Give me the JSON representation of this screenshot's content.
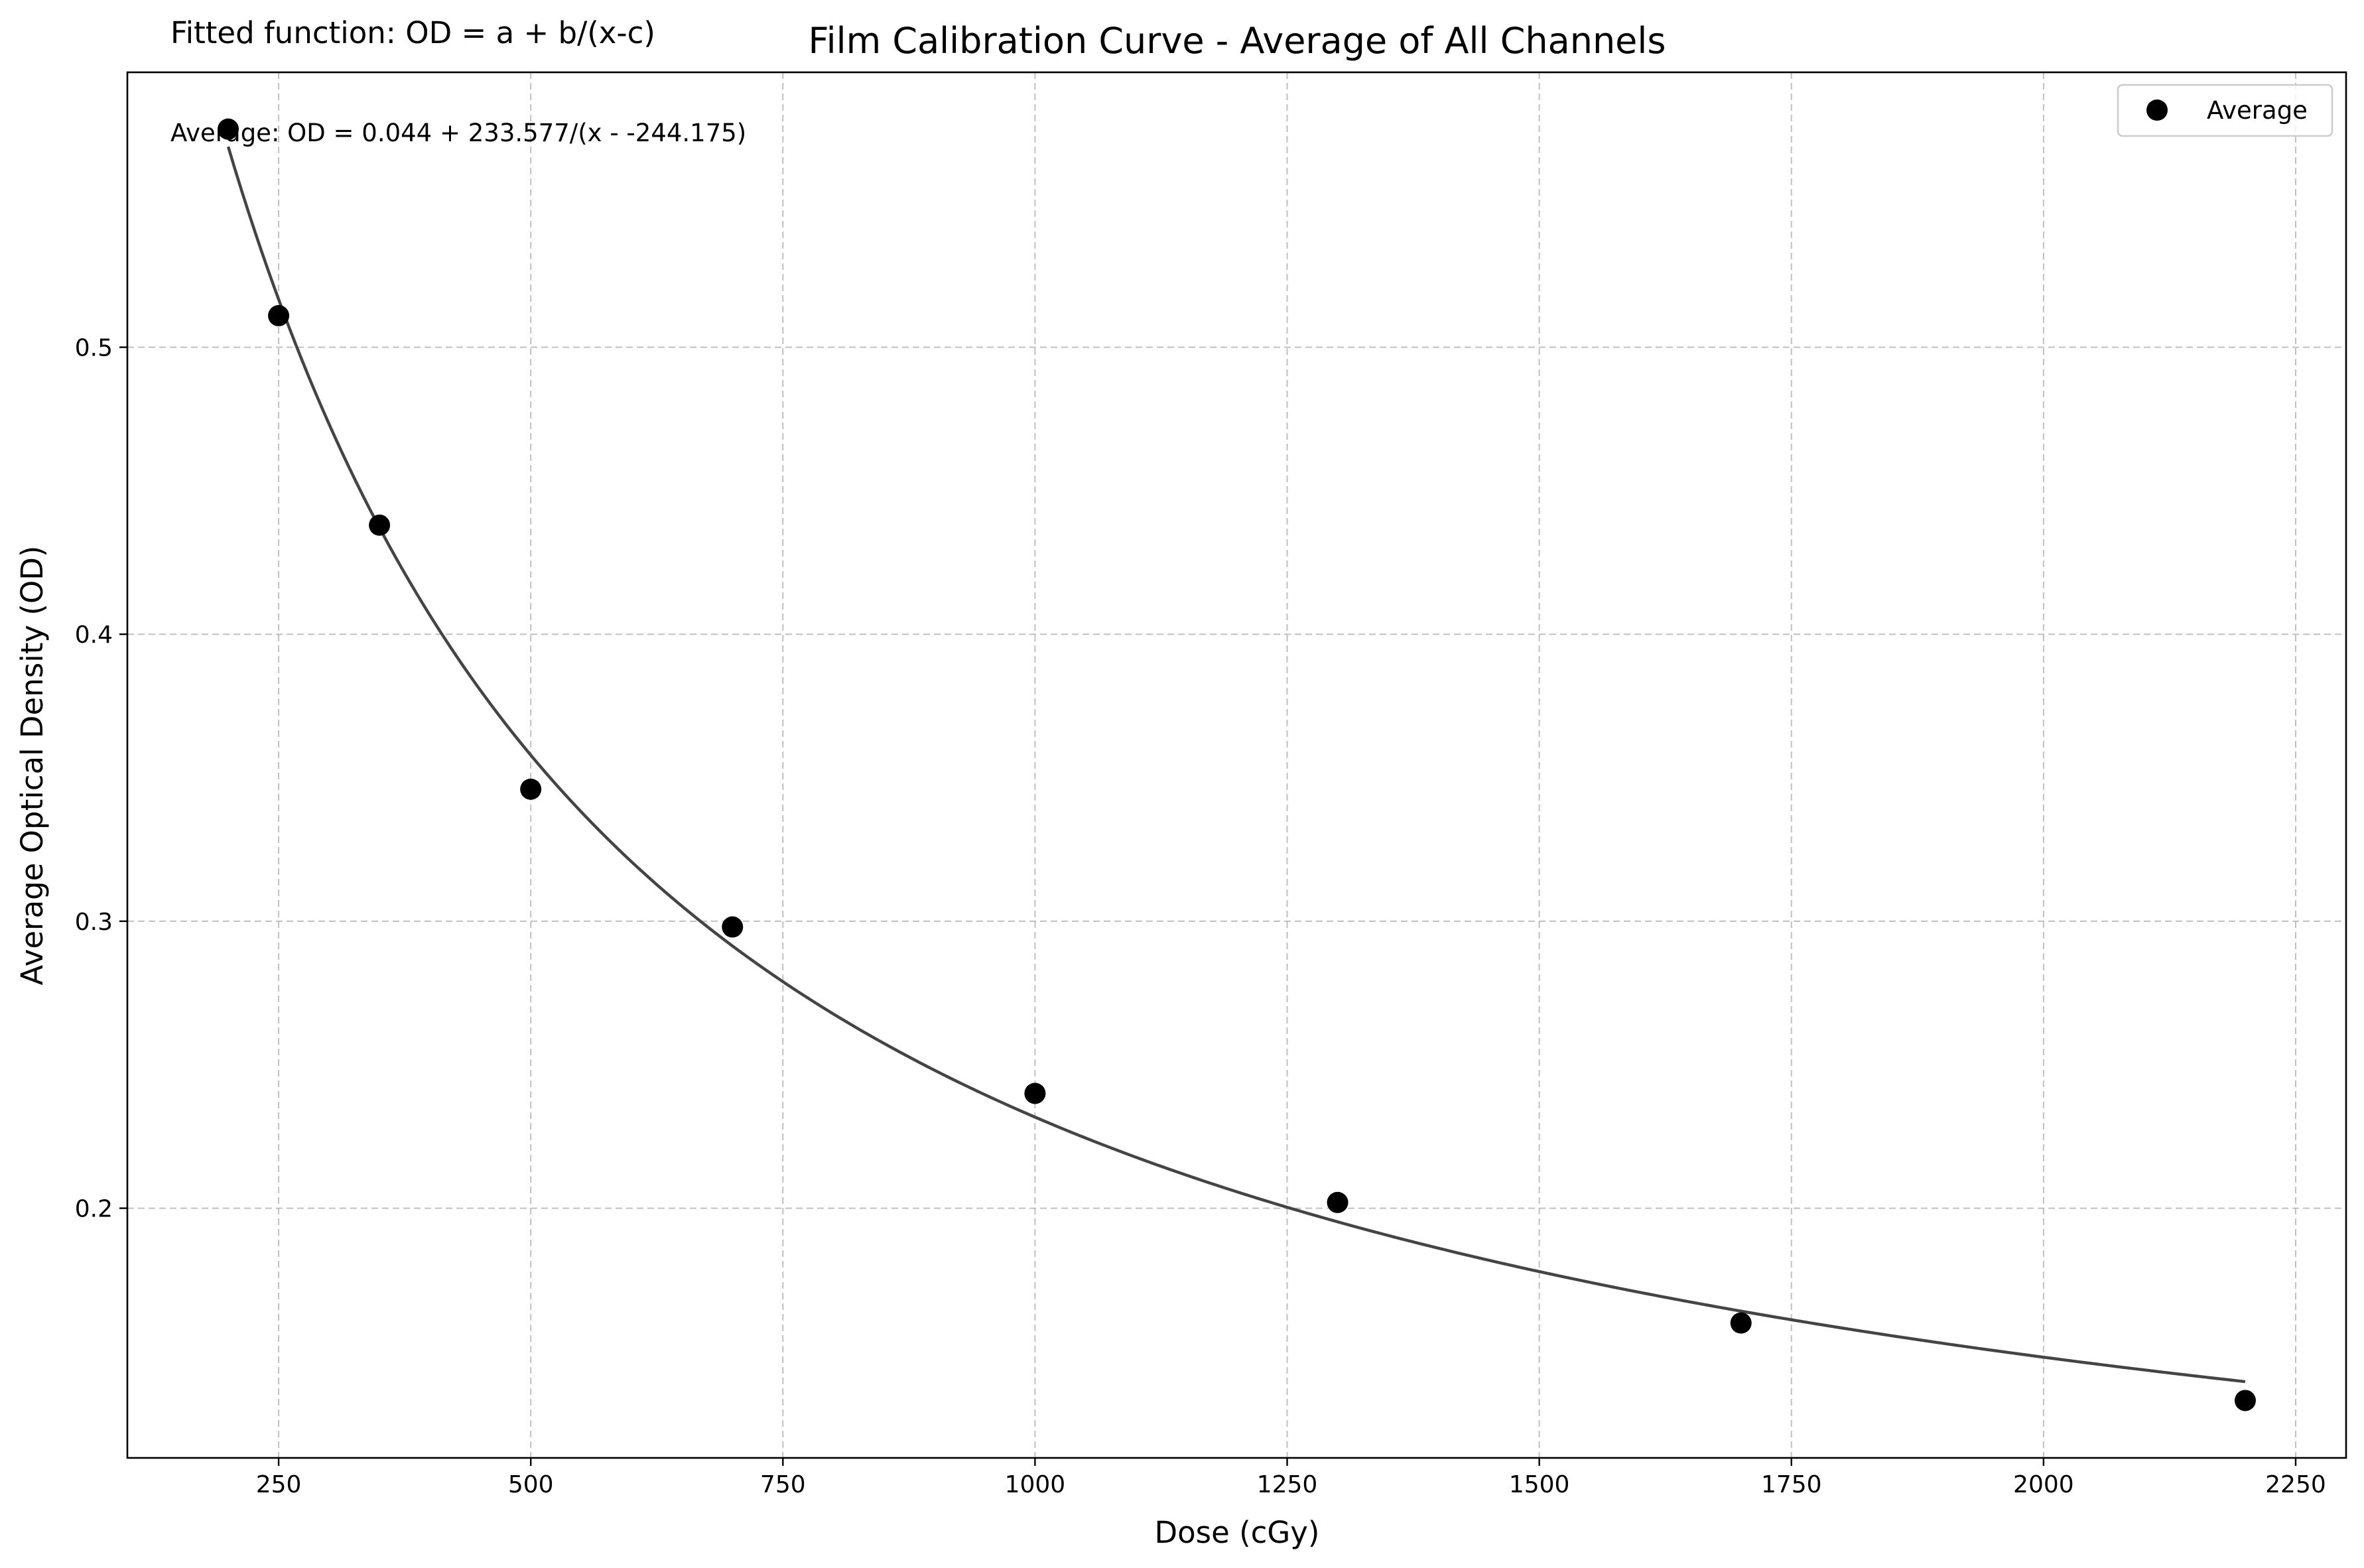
{
  "chart_data": {
    "type": "scatter",
    "title": "Film Calibration Curve - Average of All Channels",
    "xlabel": "Dose (cGy)",
    "ylabel": "Average Optical Density (OD)",
    "xlim": [
      100,
      2300
    ],
    "ylim": [
      0.113,
      0.5958
    ],
    "xticks": [
      250,
      500,
      750,
      1000,
      1250,
      1500,
      1750,
      2000,
      2250
    ],
    "yticks": [
      0.2,
      0.3,
      0.4,
      0.5
    ],
    "xtick_labels": [
      "250",
      "500",
      "750",
      "1000",
      "1250",
      "1500",
      "1750",
      "2000",
      "2250"
    ],
    "ytick_labels": [
      "0.2",
      "0.3",
      "0.4",
      "0.5"
    ],
    "grid": true,
    "legend_position": "top-right",
    "series": [
      {
        "name": "Average",
        "marker": "circle",
        "color": "#000000",
        "x": [
          200,
          250,
          350,
          500,
          700,
          1000,
          1300,
          1700,
          2200
        ],
        "y": [
          0.576,
          0.511,
          0.438,
          0.346,
          0.298,
          0.24,
          0.202,
          0.16,
          0.133
        ]
      }
    ],
    "fit": {
      "type": "line",
      "color": "#444444",
      "a": 0.044,
      "b": 233.577,
      "c": -244.175,
      "x_range": [
        200,
        2200
      ]
    },
    "annotations": {
      "fitted_function": "Fitted function: OD = a + b/(x-c)",
      "equation": "Average: OD = 0.044 + 233.577/(x - -244.175)"
    }
  },
  "colors": {
    "background": "#ffffff",
    "grid": "#b0b0b0",
    "axis": "#000000",
    "marker": "#000000",
    "fit_line": "#444444",
    "legend_border": "#cccccc"
  }
}
